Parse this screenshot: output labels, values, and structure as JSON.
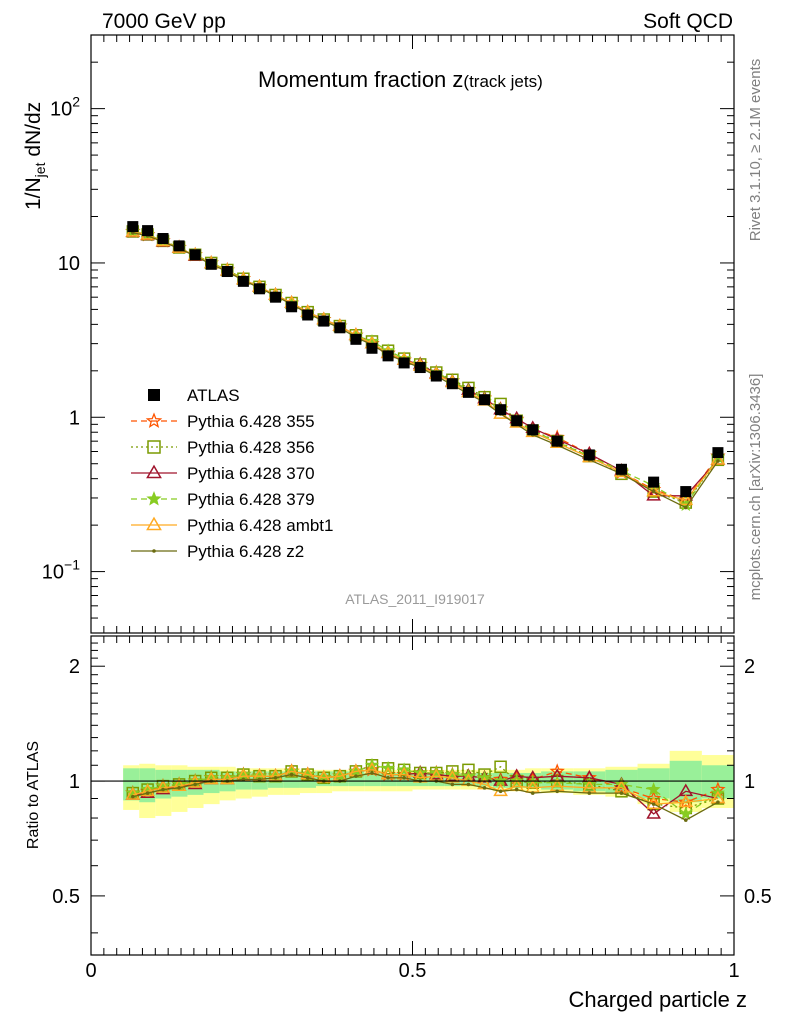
{
  "header": {
    "left": "7000 GeV pp",
    "right": "Soft QCD"
  },
  "title": {
    "main": "Momentum fraction z",
    "sub": "(track jets)"
  },
  "ylabel_top": {
    "base": "1/N",
    "sub": "jet",
    "rest": " dN/dz"
  },
  "ylabel_bottom": "Ratio to ATLAS",
  "xlabel": "Charged particle z",
  "analysis_tag": "ATLAS_2011_I919017",
  "side_label_top": "Rivet 3.1.10, ≥ 2.1M events",
  "side_label_bottom": "mcplots.cern.ch [arXiv:1306.3436]",
  "top_ticks": [
    {
      "value": 0.1,
      "base": "10",
      "exp": "−1"
    },
    {
      "value": 1,
      "base": "1",
      "exp": ""
    },
    {
      "value": 10,
      "base": "10",
      "exp": ""
    },
    {
      "value": 100,
      "base": "10",
      "exp": "2"
    }
  ],
  "x_ticks": [
    {
      "value": 0,
      "label": "0"
    },
    {
      "value": 0.5,
      "label": "0.5"
    },
    {
      "value": 1,
      "label": "1"
    }
  ],
  "ratio_ticks": [
    {
      "value": 0.5,
      "label": "0.5"
    },
    {
      "value": 1,
      "label": "1"
    },
    {
      "value": 2,
      "label": "2"
    }
  ],
  "chart_data": [
    {
      "type": "scatter",
      "panel": "main",
      "yscale": "log",
      "xlim": [
        0,
        1.0
      ],
      "ylim": [
        0.04,
        300
      ],
      "x": [
        0.065,
        0.088,
        0.112,
        0.137,
        0.162,
        0.187,
        0.212,
        0.237,
        0.262,
        0.287,
        0.312,
        0.337,
        0.362,
        0.387,
        0.412,
        0.437,
        0.462,
        0.487,
        0.512,
        0.537,
        0.562,
        0.587,
        0.612,
        0.637,
        0.662,
        0.687,
        0.725,
        0.775,
        0.825,
        0.875,
        0.925,
        0.975
      ],
      "legend_position": "left-middle",
      "series": [
        {
          "name": "ATLAS",
          "color": "#000000",
          "marker": "square",
          "line": "none",
          "values": [
            17.2,
            16.2,
            14.4,
            12.9,
            11.3,
            9.8,
            8.8,
            7.6,
            6.8,
            6.0,
            5.2,
            4.6,
            4.2,
            3.8,
            3.2,
            2.8,
            2.5,
            2.25,
            2.1,
            1.85,
            1.65,
            1.45,
            1.3,
            1.12,
            0.95,
            0.83,
            0.7,
            0.57,
            0.46,
            0.38,
            0.33,
            0.59
          ]
        },
        {
          "name": "Pythia 6.428 355",
          "color": "#ff5500",
          "marker": "star-open",
          "line": "dashed",
          "values": [
            16.0,
            15.2,
            13.9,
            12.6,
            11.3,
            10.0,
            9.0,
            7.9,
            7.0,
            6.2,
            5.5,
            4.8,
            4.3,
            3.9,
            3.4,
            3.0,
            2.6,
            2.35,
            2.2,
            1.95,
            1.72,
            1.5,
            1.33,
            1.13,
            0.97,
            0.84,
            0.74,
            0.58,
            0.44,
            0.34,
            0.29,
            0.56
          ]
        },
        {
          "name": "Pythia 6.428 356",
          "color": "#7a9a00",
          "marker": "square-open",
          "line": "dotted",
          "values": [
            16.0,
            15.3,
            13.9,
            12.6,
            11.3,
            10.0,
            9.0,
            7.9,
            7.0,
            6.2,
            5.5,
            4.8,
            4.3,
            3.9,
            3.4,
            3.1,
            2.7,
            2.4,
            2.2,
            1.95,
            1.75,
            1.55,
            1.35,
            1.22,
            0.95,
            0.82,
            0.7,
            0.56,
            0.43,
            0.33,
            0.28,
            0.53
          ]
        },
        {
          "name": "Pythia 6.428 370",
          "color": "#a0142c",
          "marker": "triangle-open",
          "line": "solid",
          "values": [
            15.8,
            15.1,
            13.7,
            12.5,
            11.1,
            9.9,
            8.9,
            7.8,
            7.0,
            6.2,
            5.5,
            4.8,
            4.3,
            3.9,
            3.4,
            3.0,
            2.6,
            2.35,
            2.2,
            1.92,
            1.7,
            1.5,
            1.32,
            1.12,
            0.98,
            0.85,
            0.72,
            0.58,
            0.45,
            0.31,
            0.31,
            0.53
          ]
        },
        {
          "name": "Pythia 6.428 379",
          "color": "#88cc22",
          "marker": "star",
          "line": "dashed",
          "values": [
            16.0,
            15.3,
            13.9,
            12.6,
            11.3,
            10.0,
            9.0,
            7.9,
            7.0,
            6.2,
            5.5,
            4.8,
            4.3,
            3.9,
            3.4,
            3.1,
            2.7,
            2.4,
            2.2,
            1.95,
            1.72,
            1.5,
            1.32,
            1.12,
            0.95,
            0.82,
            0.69,
            0.56,
            0.45,
            0.36,
            0.27,
            0.55
          ]
        },
        {
          "name": "Pythia 6.428 ambt1",
          "color": "#ffaa22",
          "marker": "triangle-open",
          "line": "solid",
          "values": [
            15.9,
            15.2,
            13.8,
            12.5,
            11.2,
            9.9,
            8.9,
            7.8,
            7.0,
            6.2,
            5.5,
            4.8,
            4.3,
            3.9,
            3.4,
            3.0,
            2.6,
            2.35,
            2.15,
            1.9,
            1.68,
            1.45,
            1.28,
            1.05,
            0.92,
            0.8,
            0.68,
            0.55,
            0.44,
            0.33,
            0.29,
            0.53
          ]
        },
        {
          "name": "Pythia 6.428 z2",
          "color": "#6b6b10",
          "marker": "dot",
          "line": "solid",
          "values": [
            15.7,
            15.0,
            13.7,
            12.4,
            11.1,
            9.8,
            8.8,
            7.7,
            6.9,
            6.1,
            5.4,
            4.7,
            4.2,
            3.8,
            3.3,
            2.95,
            2.55,
            2.3,
            2.1,
            1.85,
            1.62,
            1.42,
            1.25,
            1.05,
            0.9,
            0.77,
            0.66,
            0.53,
            0.43,
            0.33,
            0.26,
            0.52
          ]
        }
      ]
    },
    {
      "type": "line",
      "panel": "ratio",
      "xlabel": "Charged particle z",
      "ylabel": "Ratio to ATLAS",
      "xlim": [
        0,
        1.0
      ],
      "ylim": [
        0.35,
        2.4
      ],
      "band_edges": [
        0.05,
        0.075,
        0.1,
        0.125,
        0.15,
        0.175,
        0.2,
        0.225,
        0.25,
        0.275,
        0.3,
        0.325,
        0.35,
        0.375,
        0.4,
        0.425,
        0.45,
        0.475,
        0.5,
        0.525,
        0.55,
        0.575,
        0.6,
        0.625,
        0.65,
        0.675,
        0.7,
        0.75,
        0.8,
        0.85,
        0.9,
        0.95,
        1.0
      ],
      "band_green_lo": [
        0.89,
        0.88,
        0.9,
        0.91,
        0.92,
        0.93,
        0.94,
        0.95,
        0.95,
        0.96,
        0.96,
        0.96,
        0.97,
        0.97,
        0.97,
        0.97,
        0.97,
        0.97,
        0.97,
        0.97,
        0.97,
        0.97,
        0.97,
        0.96,
        0.96,
        0.96,
        0.95,
        0.94,
        0.93,
        0.9,
        0.88,
        0.9
      ],
      "band_green_hi": [
        1.08,
        1.08,
        1.07,
        1.07,
        1.07,
        1.07,
        1.06,
        1.06,
        1.06,
        1.06,
        1.06,
        1.06,
        1.06,
        1.06,
        1.06,
        1.05,
        1.05,
        1.05,
        1.05,
        1.05,
        1.05,
        1.05,
        1.05,
        1.05,
        1.05,
        1.05,
        1.06,
        1.06,
        1.07,
        1.08,
        1.13,
        1.1
      ],
      "band_yellow_lo": [
        0.84,
        0.8,
        0.81,
        0.83,
        0.85,
        0.87,
        0.89,
        0.9,
        0.91,
        0.92,
        0.92,
        0.93,
        0.93,
        0.94,
        0.94,
        0.94,
        0.94,
        0.94,
        0.95,
        0.95,
        0.95,
        0.95,
        0.95,
        0.94,
        0.94,
        0.94,
        0.93,
        0.92,
        0.91,
        0.87,
        0.83,
        0.85
      ],
      "band_yellow_hi": [
        1.1,
        1.11,
        1.1,
        1.1,
        1.09,
        1.09,
        1.09,
        1.08,
        1.08,
        1.08,
        1.08,
        1.07,
        1.07,
        1.07,
        1.07,
        1.07,
        1.07,
        1.07,
        1.07,
        1.07,
        1.07,
        1.07,
        1.07,
        1.07,
        1.07,
        1.08,
        1.08,
        1.08,
        1.09,
        1.11,
        1.2,
        1.17
      ],
      "series": [
        {
          "name": "Pythia 6.428 355",
          "values": [
            0.93,
            0.94,
            0.97,
            0.98,
            1.0,
            1.02,
            1.02,
            1.04,
            1.03,
            1.03,
            1.06,
            1.04,
            1.02,
            1.03,
            1.06,
            1.07,
            1.04,
            1.04,
            1.05,
            1.05,
            1.04,
            1.03,
            1.02,
            1.01,
            1.02,
            1.01,
            1.06,
            1.02,
            0.96,
            0.9,
            0.88,
            0.95
          ]
        },
        {
          "name": "Pythia 6.428 356",
          "values": [
            0.93,
            0.95,
            0.97,
            0.98,
            1.0,
            1.02,
            1.02,
            1.04,
            1.03,
            1.03,
            1.06,
            1.04,
            1.02,
            1.03,
            1.06,
            1.1,
            1.08,
            1.07,
            1.05,
            1.05,
            1.06,
            1.07,
            1.04,
            1.09,
            1.0,
            0.99,
            1.0,
            0.98,
            0.94,
            0.87,
            0.85,
            0.9
          ]
        },
        {
          "name": "Pythia 6.428 370",
          "values": [
            0.92,
            0.93,
            0.95,
            0.97,
            0.98,
            1.01,
            1.01,
            1.03,
            1.03,
            1.03,
            1.06,
            1.04,
            1.02,
            1.03,
            1.06,
            1.07,
            1.04,
            1.04,
            1.05,
            1.04,
            1.03,
            1.03,
            1.02,
            1.0,
            1.03,
            1.02,
            1.03,
            1.02,
            0.98,
            0.82,
            0.94,
            0.9
          ]
        },
        {
          "name": "Pythia 6.428 379",
          "values": [
            0.93,
            0.95,
            0.97,
            0.98,
            1.0,
            1.02,
            1.02,
            1.04,
            1.03,
            1.03,
            1.06,
            1.04,
            1.02,
            1.03,
            1.06,
            1.1,
            1.08,
            1.07,
            1.05,
            1.05,
            1.04,
            1.03,
            1.02,
            1.0,
            1.0,
            0.99,
            0.99,
            0.98,
            0.98,
            0.95,
            0.82,
            0.93
          ]
        },
        {
          "name": "Pythia 6.428 ambt1",
          "values": [
            0.92,
            0.94,
            0.96,
            0.97,
            0.99,
            1.01,
            1.01,
            1.03,
            1.03,
            1.03,
            1.06,
            1.04,
            1.02,
            1.03,
            1.06,
            1.07,
            1.04,
            1.04,
            1.02,
            1.03,
            1.02,
            1.0,
            0.98,
            0.94,
            0.97,
            0.96,
            0.97,
            0.96,
            0.96,
            0.87,
            0.88,
            0.9
          ]
        },
        {
          "name": "Pythia 6.428 z2",
          "values": [
            0.91,
            0.93,
            0.95,
            0.96,
            0.98,
            1.0,
            1.0,
            1.01,
            1.01,
            1.02,
            1.04,
            1.02,
            1.0,
            1.0,
            1.03,
            1.05,
            1.02,
            1.02,
            1.0,
            1.0,
            0.98,
            0.98,
            0.96,
            0.94,
            0.95,
            0.93,
            0.94,
            0.93,
            0.93,
            0.87,
            0.79,
            0.88
          ]
        }
      ]
    }
  ]
}
